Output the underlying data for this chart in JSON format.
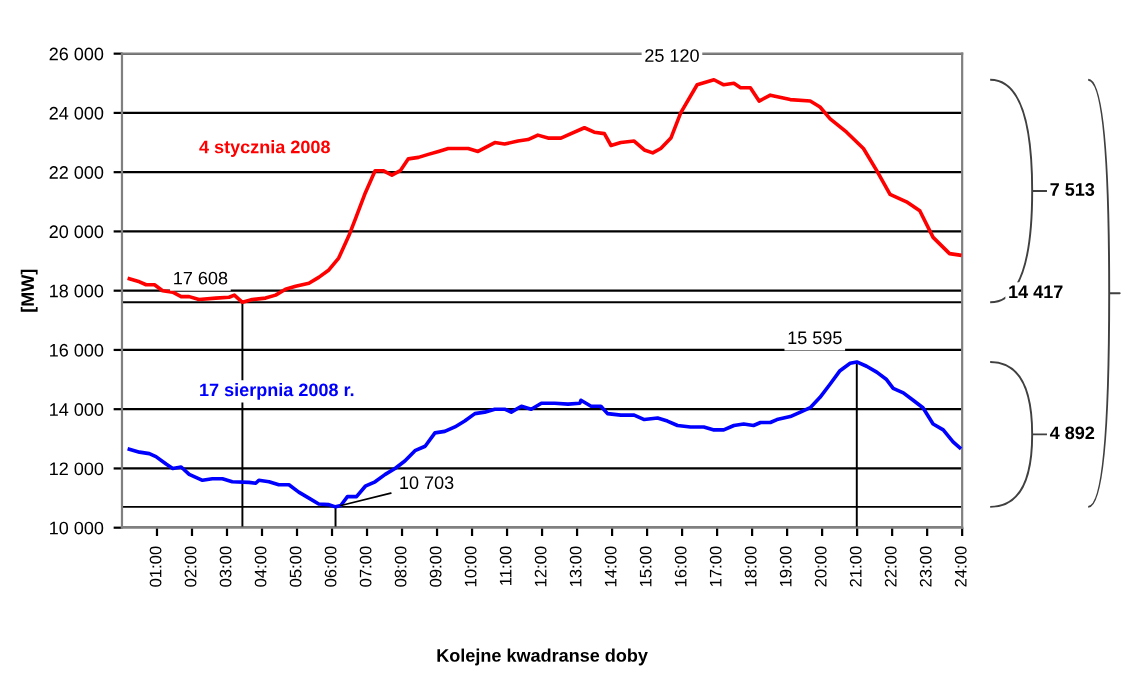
{
  "chart_data": {
    "type": "line",
    "xlabel": "Kolejne kwadranse doby",
    "ylabel": "[MW]",
    "xlim": [
      0,
      24
    ],
    "xticks": [
      {
        "value": 1,
        "label": "01:00"
      },
      {
        "value": 2,
        "label": "02:00"
      },
      {
        "value": 3,
        "label": "03:00"
      },
      {
        "value": 4,
        "label": "04:00"
      },
      {
        "value": 5,
        "label": "05:00"
      },
      {
        "value": 6,
        "label": "06:00"
      },
      {
        "value": 7,
        "label": "07:00"
      },
      {
        "value": 8,
        "label": "08:00"
      },
      {
        "value": 9,
        "label": "09:00"
      },
      {
        "value": 10,
        "label": "10:00"
      },
      {
        "value": 11,
        "label": "11:00"
      },
      {
        "value": 12,
        "label": "12:00"
      },
      {
        "value": 13,
        "label": "13:00"
      },
      {
        "value": 14,
        "label": "14:00"
      },
      {
        "value": 15,
        "label": "15:00"
      },
      {
        "value": 16,
        "label": "16:00"
      },
      {
        "value": 17,
        "label": "17:00"
      },
      {
        "value": 18,
        "label": "18:00"
      },
      {
        "value": 19,
        "label": "19:00"
      },
      {
        "value": 20,
        "label": "20:00"
      },
      {
        "value": 21,
        "label": "21:00"
      },
      {
        "value": 22,
        "label": "22:00"
      },
      {
        "value": 23,
        "label": "23:00"
      },
      {
        "value": 24,
        "label": "24:00"
      }
    ],
    "ylim": [
      10000,
      26000
    ],
    "yticks": [
      {
        "value": 10000,
        "label": "10 000"
      },
      {
        "value": 12000,
        "label": "12 000"
      },
      {
        "value": 14000,
        "label": "14 000"
      },
      {
        "value": 16000,
        "label": "16 000"
      },
      {
        "value": 18000,
        "label": "18 000"
      },
      {
        "value": 20000,
        "label": "20 000"
      },
      {
        "value": 22000,
        "label": "22 000"
      },
      {
        "value": 24000,
        "label": "24 000"
      },
      {
        "value": 26000,
        "label": "26 000"
      }
    ],
    "grid": "y",
    "legend": false,
    "marker": "none",
    "line_style": "solid",
    "series": [
      {
        "name": "4 stycznia 2008",
        "color": "#ff0000",
        "x": [
          0.21,
          0.5,
          0.69,
          0.93,
          1.16,
          1.45,
          1.69,
          1.92,
          2.2,
          2.68,
          3.06,
          3.21,
          3.44,
          3.72,
          4.1,
          4.39,
          4.67,
          4.96,
          5.34,
          5.62,
          5.91,
          6.19,
          6.48,
          6.66,
          6.95,
          7.23,
          7.46,
          7.71,
          7.95,
          8.18,
          8.47,
          8.75,
          9.04,
          9.32,
          9.7,
          9.89,
          10.17,
          10.65,
          10.93,
          11.31,
          11.6,
          11.88,
          12.17,
          12.54,
          12.73,
          13.21,
          13.49,
          13.78,
          13.97,
          14.25,
          14.63,
          14.92,
          15.16,
          15.39,
          15.68,
          15.96,
          16.43,
          16.91,
          17.19,
          17.48,
          17.67,
          17.95,
          18.2,
          18.52,
          19.09,
          19.66,
          19.94,
          20.23,
          20.7,
          21.18,
          21.56,
          21.94,
          22.41,
          22.79,
          23.17,
          23.64,
          23.93
        ],
        "values": [
          18400,
          18300,
          18200,
          18200,
          18000,
          17950,
          17800,
          17800,
          17700,
          17750,
          17780,
          17850,
          17608,
          17700,
          17750,
          17850,
          18050,
          18150,
          18250,
          18450,
          18700,
          19100,
          19850,
          20400,
          21300,
          22050,
          22050,
          21900,
          22050,
          22450,
          22500,
          22600,
          22700,
          22800,
          22800,
          22800,
          22700,
          23000,
          22950,
          23050,
          23100,
          23250,
          23150,
          23150,
          23250,
          23500,
          23350,
          23300,
          22900,
          23000,
          23050,
          22750,
          22650,
          22800,
          23150,
          24000,
          24950,
          25120,
          24950,
          25000,
          24850,
          24850,
          24400,
          24600,
          24450,
          24400,
          24200,
          23800,
          23350,
          22800,
          22050,
          21250,
          21000,
          20700,
          19800,
          19250,
          19200
        ]
      },
      {
        "name": "17 sierpnia 2008 r.",
        "color": "#0000ff",
        "x": [
          0.21,
          0.5,
          0.78,
          0.97,
          1.26,
          1.45,
          1.69,
          1.92,
          2.3,
          2.58,
          2.87,
          3.15,
          3.63,
          3.82,
          3.91,
          4.2,
          4.48,
          4.77,
          5.05,
          5.34,
          5.62,
          5.91,
          6.1,
          6.25,
          6.44,
          6.7,
          6.95,
          7.23,
          7.52,
          7.8,
          8.08,
          8.37,
          8.66,
          8.94,
          9.22,
          9.51,
          9.79,
          10.08,
          10.36,
          10.65,
          10.93,
          11.12,
          11.41,
          11.69,
          11.98,
          12.36,
          12.74,
          13.08,
          13.11,
          13.4,
          13.68,
          13.87,
          14.25,
          14.63,
          14.92,
          15.3,
          15.58,
          15.87,
          16.24,
          16.62,
          16.91,
          17.19,
          17.48,
          17.76,
          18.04,
          18.24,
          18.52,
          18.71,
          19.09,
          19.38,
          19.66,
          19.94,
          20.23,
          20.51,
          20.8,
          20.99,
          21.27,
          21.56,
          21.84,
          22.03,
          22.32,
          22.6,
          22.88,
          23.17,
          23.46,
          23.74,
          23.93
        ],
        "values": [
          12650,
          12550,
          12500,
          12400,
          12150,
          12000,
          12050,
          11800,
          11600,
          11650,
          11650,
          11550,
          11530,
          11500,
          11600,
          11550,
          11450,
          11450,
          11200,
          11000,
          10800,
          10780,
          10703,
          10750,
          11050,
          11050,
          11400,
          11550,
          11800,
          12000,
          12250,
          12600,
          12750,
          13200,
          13250,
          13400,
          13600,
          13850,
          13900,
          14000,
          14000,
          13900,
          14100,
          14000,
          14200,
          14200,
          14170,
          14200,
          14300,
          14100,
          14100,
          13850,
          13800,
          13800,
          13650,
          13700,
          13600,
          13450,
          13400,
          13400,
          13300,
          13300,
          13450,
          13500,
          13450,
          13550,
          13550,
          13650,
          13750,
          13900,
          14050,
          14400,
          14850,
          15300,
          15550,
          15595,
          15450,
          15250,
          15000,
          14700,
          14550,
          14300,
          14050,
          13500,
          13300,
          12900,
          12700
        ]
      }
    ],
    "ref_lines": [
      {
        "axis": "y",
        "value": 17608,
        "color": "#000000"
      },
      {
        "axis": "y",
        "value": 10703,
        "color": "#000000"
      }
    ],
    "annotations": [
      {
        "text": "25 120",
        "x": 16.91,
        "y": 25120
      },
      {
        "text": "17 608",
        "x": 3.44,
        "y": 17608
      },
      {
        "text": "10 703",
        "x": 6.1,
        "y": 10703
      },
      {
        "text": "15 595",
        "x": 20.99,
        "y": 15595
      },
      "7 513",
      "14 417",
      "4 892"
    ]
  }
}
